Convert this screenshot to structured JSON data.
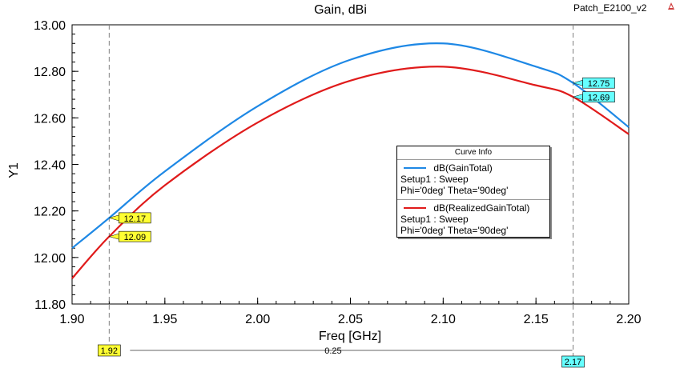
{
  "header": {
    "title": "Gain, dBi",
    "project_label": "Patch_E2100_v2"
  },
  "colors": {
    "gain_total": "#1e88e5",
    "realized_gain_total": "#e01b1b",
    "marker_yellow": "#ffff33",
    "marker_cyan": "#66ffff",
    "grid_dash": "#808080"
  },
  "chart_data": {
    "type": "line",
    "title": "Gain, dBi",
    "xlabel": "Freq [GHz]",
    "ylabel": "Y1",
    "xlim": [
      1.9,
      2.2
    ],
    "ylim": [
      11.8,
      13.0
    ],
    "x_ticks": [
      "1.90",
      "1.95",
      "2.00",
      "2.05",
      "2.10",
      "2.15",
      "2.20"
    ],
    "y_ticks": [
      "11.80",
      "12.00",
      "12.20",
      "12.40",
      "12.60",
      "12.80",
      "13.00"
    ],
    "grid": true,
    "legend_position": "center-right",
    "series": [
      {
        "name": "dB(GainTotal)",
        "color": "#1e88e5",
        "x": [
          1.9,
          1.92,
          1.95,
          2.0,
          2.05,
          2.1,
          2.15,
          2.17,
          2.2
        ],
        "y": [
          12.04,
          12.17,
          12.37,
          12.65,
          12.85,
          12.92,
          12.82,
          12.75,
          12.56
        ]
      },
      {
        "name": "dB(RealizedGainTotal)",
        "color": "#e01b1b",
        "x": [
          1.9,
          1.92,
          1.95,
          2.0,
          2.05,
          2.1,
          2.15,
          2.17,
          2.2
        ],
        "y": [
          11.91,
          12.09,
          12.31,
          12.58,
          12.76,
          12.82,
          12.74,
          12.69,
          12.53
        ]
      }
    ],
    "markers": {
      "x": [
        {
          "label": "1.92",
          "value": 1.92,
          "color": "#ffff33"
        },
        {
          "label": "2.17",
          "value": 2.17,
          "color": "#66ffff"
        }
      ],
      "delta_label": "0.25",
      "points": [
        {
          "label": "12.17",
          "x": 1.92,
          "y": 12.17,
          "color": "#ffff33"
        },
        {
          "label": "12.09",
          "x": 1.92,
          "y": 12.09,
          "color": "#ffff33"
        },
        {
          "label": "12.75",
          "x": 2.17,
          "y": 12.75,
          "color": "#66ffff"
        },
        {
          "label": "12.69",
          "x": 2.17,
          "y": 12.69,
          "color": "#66ffff"
        }
      ]
    }
  },
  "legend": {
    "title": "Curve Info",
    "entries": [
      {
        "name": "dB(GainTotal)",
        "setup": "Setup1 : Sweep",
        "angles": "Phi='0deg' Theta='90deg'"
      },
      {
        "name": "dB(RealizedGainTotal)",
        "setup": "Setup1 : Sweep",
        "angles": "Phi='0deg' Theta='90deg'"
      }
    ]
  }
}
